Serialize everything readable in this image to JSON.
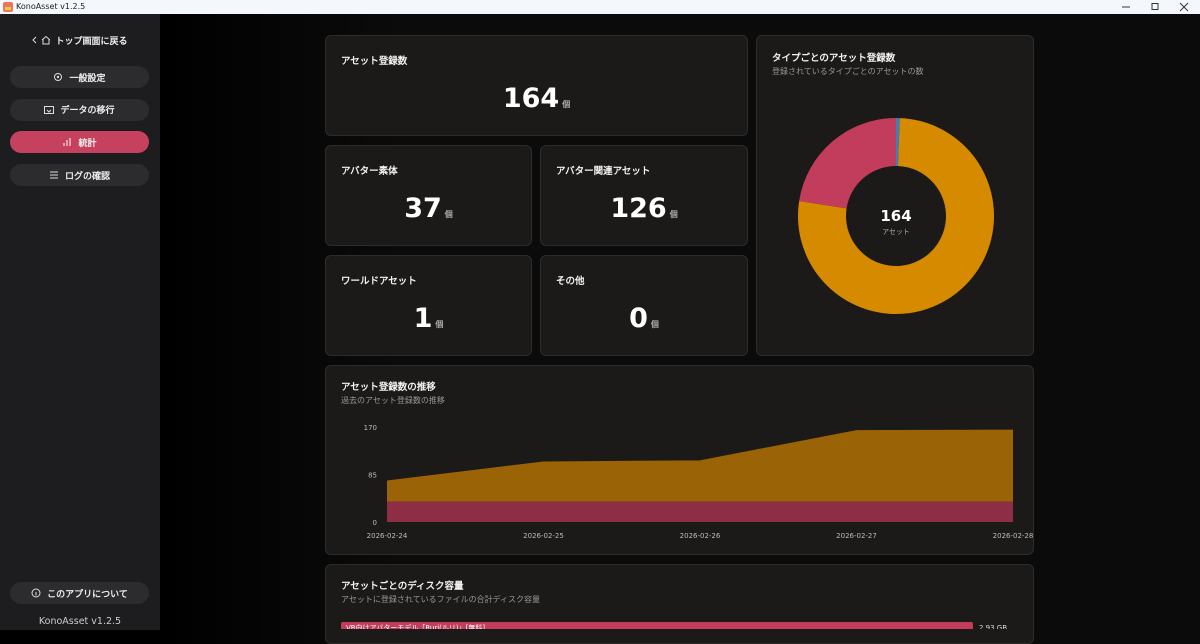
{
  "window": {
    "title": "KonoAsset v1.2.5"
  },
  "sidebar": {
    "back": "トップ画面に戻る",
    "nav": [
      "一般設定",
      "データの移行",
      "統計",
      "ログの確認"
    ],
    "active": 2,
    "about": "このアプリについて",
    "version": "KonoAsset v1.2.5"
  },
  "stats": {
    "unit": "個",
    "cards": [
      {
        "label": "アセット登録数",
        "value": 164
      },
      {
        "label": "アバター素体",
        "value": 37
      },
      {
        "label": "アバター関連アセット",
        "value": 126
      },
      {
        "label": "ワールドアセット",
        "value": 1
      },
      {
        "label": "その他",
        "value": 0
      }
    ]
  },
  "chart_data": [
    {
      "type": "pie",
      "title": "タイプごとのアセット登録数",
      "subtitle": "登録されているタイプごとのアセットの数",
      "center_value": 164,
      "center_label": "アセット",
      "values": [
        1,
        126,
        37,
        0
      ],
      "colors": [
        "#3b7fbf",
        "#d58a00",
        "#c23d5c",
        "#7a7a7a"
      ],
      "donut": true
    },
    {
      "type": "area",
      "title": "アセット登録数の推移",
      "subtitle": "過去のアセット登録数の推移",
      "x": [
        "2026-02-24",
        "2026-02-25",
        "2026-02-26",
        "2026-02-27",
        "2026-02-28"
      ],
      "ylim": [
        0,
        170
      ],
      "yticks": [
        0,
        85,
        170
      ],
      "stacked": true,
      "series": [
        {
          "color": "#8e2e45",
          "values": [
            37,
            37,
            37,
            37,
            37
          ]
        },
        {
          "color": "#9a6406",
          "values": [
            36,
            70,
            72,
            126,
            127
          ]
        }
      ]
    },
    {
      "type": "bar",
      "orientation": "horizontal",
      "title": "アセットごとのディスク容量",
      "subtitle": "アセットに登録されているファイルの合計ディスク容量",
      "categories": [
        "VR向けアバターモデル「Ruri(ルリ)」[無料]"
      ],
      "values": [
        2.93
      ],
      "value_labels": [
        "2.93 GB"
      ],
      "color": "#c23d5c"
    }
  ]
}
